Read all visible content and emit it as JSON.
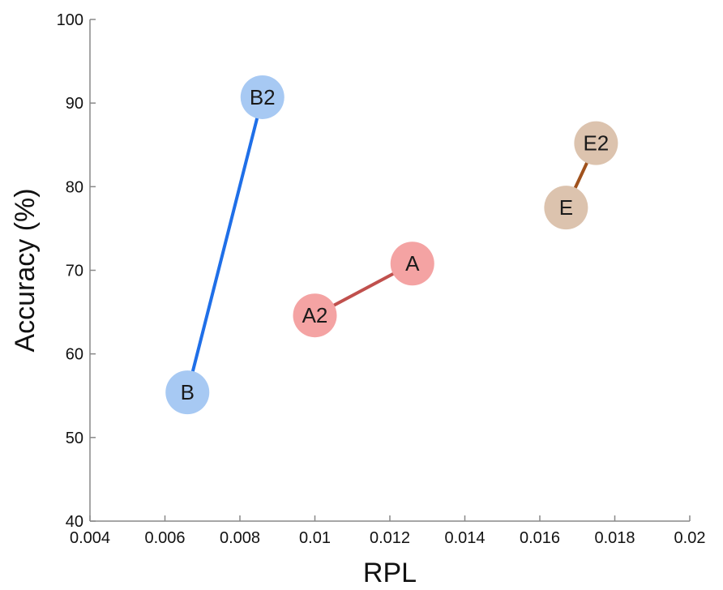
{
  "chart_data": {
    "type": "scatter",
    "xlabel": "RPL",
    "ylabel": "Accuracy (%)",
    "xlim": [
      0.004,
      0.02
    ],
    "ylim": [
      40,
      100
    ],
    "xticks": [
      "0.004",
      "0.006",
      "0.008",
      "0.01",
      "0.012",
      "0.014",
      "0.016",
      "0.018",
      "0.02"
    ],
    "yticks": [
      "40",
      "50",
      "60",
      "70",
      "80",
      "90",
      "100"
    ],
    "grid": false,
    "legend": "none",
    "series": [
      {
        "line_color": "#1f6fe8",
        "marker_color": "#a7c9f3",
        "points": [
          {
            "label": "B",
            "x": 0.0066,
            "y": 55.4
          },
          {
            "label": "B2",
            "x": 0.0086,
            "y": 90.7
          }
        ]
      },
      {
        "line_color": "#c0504d",
        "marker_color": "#f4a3a3",
        "points": [
          {
            "label": "A2",
            "x": 0.01,
            "y": 64.6
          },
          {
            "label": "A",
            "x": 0.0126,
            "y": 70.8
          }
        ]
      },
      {
        "line_color": "#a0521d",
        "marker_color": "#dcc3ae",
        "points": [
          {
            "label": "E",
            "x": 0.0167,
            "y": 77.5
          },
          {
            "label": "E2",
            "x": 0.0175,
            "y": 85.2
          }
        ]
      }
    ]
  }
}
